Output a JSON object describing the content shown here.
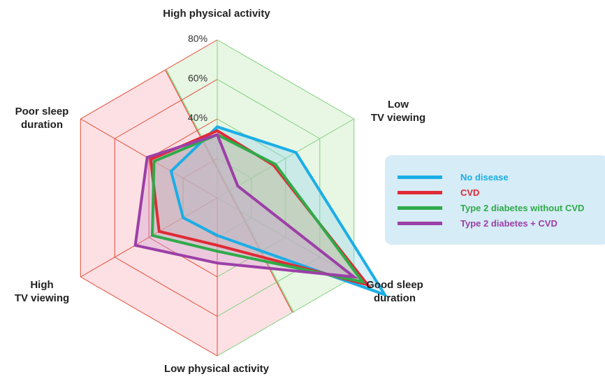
{
  "chart_data": {
    "type": "radar",
    "title": "",
    "axes": [
      "High physical activity",
      "Low TV viewing",
      "Good sleep duration",
      "Low physical activity",
      "High TV viewing",
      "Poor sleep duration"
    ],
    "axis_labels_display": {
      "top": "High physical activity",
      "top_right_line1": "Low",
      "top_right_line2": "TV viewing",
      "bottom_right_line1": "Good sleep",
      "bottom_right_line2": "duration",
      "bottom": "Low physical activity",
      "bottom_left_line1": "High",
      "bottom_left_line2": "TV viewing",
      "top_left_line1": "Poor sleep",
      "top_left_line2": "duration"
    },
    "tick_labels": [
      "40%",
      "60%",
      "80%"
    ],
    "rlim": [
      0,
      80
    ],
    "background_regions": [
      {
        "name": "healthy",
        "color": "#e8f6e4",
        "edge": "#7fd17a"
      },
      {
        "name": "unhealthy",
        "color": "#fde0e4",
        "edge": "#e34a35"
      }
    ],
    "series": [
      {
        "name": "No disease",
        "color": "#1aaee6",
        "fill": "#8fd3ef",
        "values": [
          36,
          46,
          98,
          19,
          20,
          27
        ]
      },
      {
        "name": "CVD",
        "color": "#e02a36",
        "fill": "#f1a0a8",
        "values": [
          34,
          33,
          88,
          24,
          34,
          39
        ]
      },
      {
        "name": "Type 2 diabetes without CVD",
        "color": "#2faa4a",
        "fill": "#9ed6a4",
        "values": [
          32,
          34,
          85,
          27,
          38,
          37
        ]
      },
      {
        "name": "Type 2 diabetes + CVD",
        "color": "#9c3fa7",
        "fill": "#c89ad2",
        "values": [
          32,
          12,
          80,
          33,
          48,
          41
        ]
      }
    ],
    "legend_position": "right"
  }
}
